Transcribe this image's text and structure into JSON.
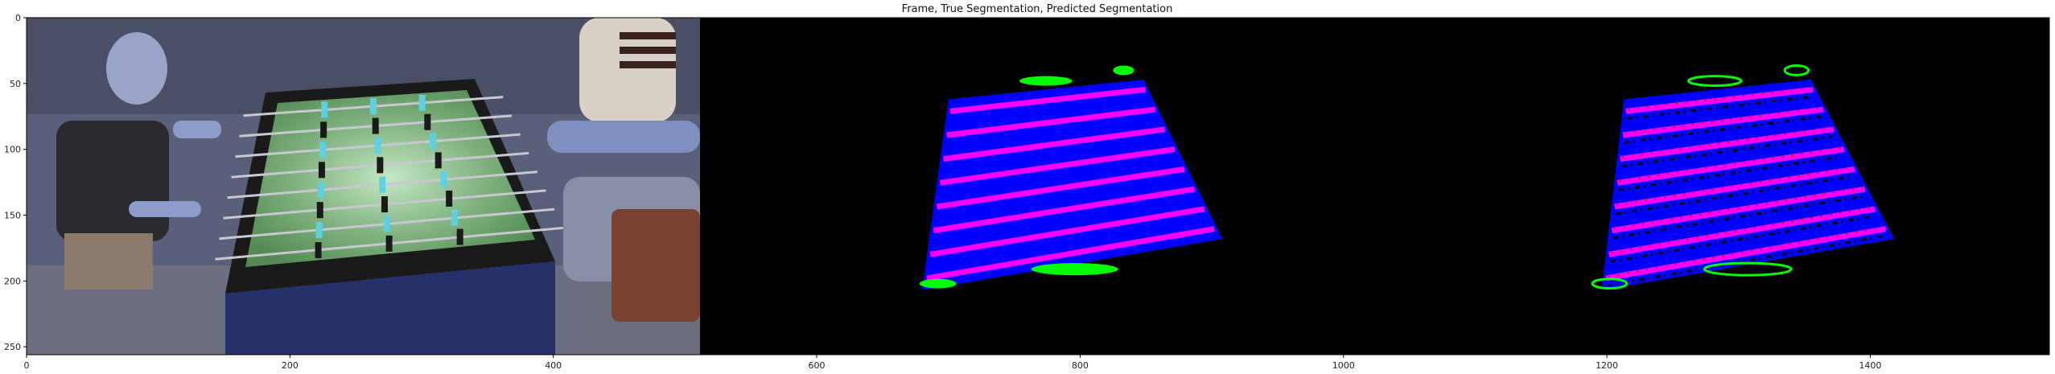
{
  "chart_data": {
    "type": "image",
    "title": "Frame, True Segmentation, Predicted Segmentation",
    "xlabel": "",
    "ylabel": "",
    "xlim": [
      0,
      1536
    ],
    "ylim": [
      256,
      0
    ],
    "xticks": [
      0,
      200,
      400,
      600,
      800,
      1000,
      1200,
      1400
    ],
    "yticks": [
      0,
      50,
      100,
      150,
      200,
      250
    ],
    "panels": [
      {
        "name": "Frame",
        "x_range": [
          0,
          512
        ]
      },
      {
        "name": "True Segmentation",
        "x_range": [
          512,
          1024
        ]
      },
      {
        "name": "Predicted Segmentation",
        "x_range": [
          1024,
          1536
        ]
      }
    ],
    "segmentation_colors": {
      "table": "#0000ff",
      "rods": "#ff00ff",
      "players": "#00ff00",
      "background": "#000000"
    },
    "true_table_polygon": [
      [
        700,
        62
      ],
      [
        848,
        47
      ],
      [
        908,
        168
      ],
      [
        680,
        207
      ]
    ],
    "pred_table_polygon": [
      [
        1213,
        62
      ],
      [
        1355,
        47
      ],
      [
        1418,
        168
      ],
      [
        1196,
        207
      ]
    ],
    "true_green_blobs": [
      {
        "cx": 774,
        "cy": 48,
        "rx": 20,
        "ry": 3
      },
      {
        "cx": 833,
        "cy": 40,
        "rx": 8,
        "ry": 3
      },
      {
        "cx": 796,
        "cy": 191,
        "rx": 33,
        "ry": 4
      },
      {
        "cx": 692,
        "cy": 202,
        "rx": 14,
        "ry": 3
      }
    ],
    "pred_green_blobs": [
      {
        "cx": 1282,
        "cy": 48,
        "rx": 20,
        "ry": 3
      },
      {
        "cx": 1344,
        "cy": 40,
        "rx": 9,
        "ry": 3
      },
      {
        "cx": 1307,
        "cy": 191,
        "rx": 33,
        "ry": 4
      },
      {
        "cx": 1202,
        "cy": 202,
        "rx": 13,
        "ry": 3
      }
    ],
    "rod_count": 8
  }
}
